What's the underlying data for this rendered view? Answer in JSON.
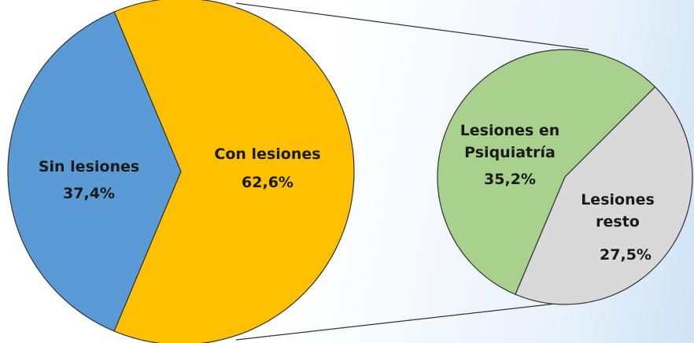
{
  "chart_data": {
    "type": "pie",
    "categories": [
      "Sin lesiones",
      "Con lesiones"
    ],
    "values": [
      37.4,
      62.6
    ],
    "value_labels": [
      "37,4%",
      "62,6%"
    ],
    "colors": [
      "#5b9bd5",
      "#ffc000"
    ],
    "secondary": {
      "categories": [
        "Lesiones en Psiquiatría",
        "Lesiones resto"
      ],
      "values": [
        35.2,
        27.5
      ],
      "value_labels": [
        "35,2%",
        "27,5%"
      ],
      "colors": [
        "#a9d18e",
        "#d9d9d9"
      ]
    }
  }
}
